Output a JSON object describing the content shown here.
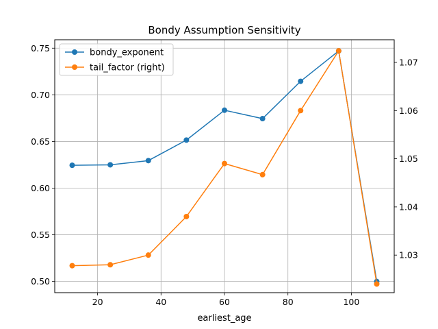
{
  "chart_data": {
    "type": "line",
    "title": "Bondy Assumption Sensitivity",
    "xlabel": "earliest_age",
    "ylabel": "",
    "x": [
      12,
      24,
      36,
      48,
      60,
      72,
      84,
      96,
      108
    ],
    "xlim": [
      6.5,
      113.5
    ],
    "xticks": [
      20,
      40,
      60,
      80,
      100
    ],
    "ylim_left": [
      0.488,
      0.759
    ],
    "yticks_left": [
      "0.50",
      "0.55",
      "0.60",
      "0.65",
      "0.70",
      "0.75"
    ],
    "ylim_right": [
      1.0222,
      1.0747
    ],
    "yticks_right": [
      "1.03",
      "1.04",
      "1.05",
      "1.06",
      "1.07"
    ],
    "grid": true,
    "legend_position": "upper-left",
    "series": [
      {
        "name": "bondy_exponent",
        "axis": "left",
        "color": "#1f77b4",
        "marker": "circle",
        "values": [
          0.6245,
          0.625,
          0.6295,
          0.6515,
          0.6835,
          0.6745,
          0.7145,
          0.747,
          0.5
        ]
      },
      {
        "name": "tail_factor (right)",
        "axis": "right",
        "color": "#ff7f0e",
        "marker": "circle",
        "values": [
          1.0278,
          1.028,
          1.03,
          1.038,
          1.049,
          1.0467,
          1.06,
          1.0724,
          1.024
        ]
      }
    ]
  }
}
